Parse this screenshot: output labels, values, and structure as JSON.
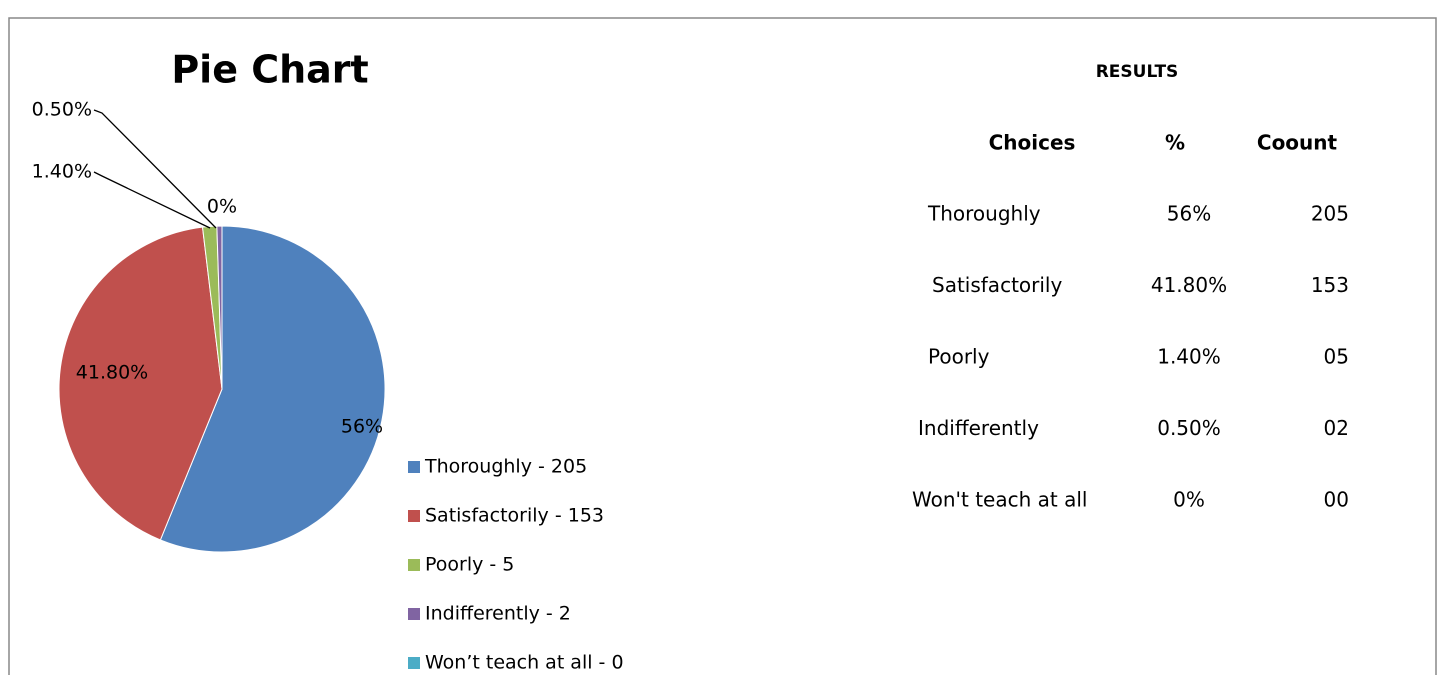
{
  "chart_data": {
    "type": "pie",
    "title": "Pie Chart",
    "categories": [
      "Thoroughly - 205",
      "Satisfactorily - 153",
      "Poorly - 5",
      "Indifferently - 2",
      "Won’t teach at all - 0"
    ],
    "values": [
      56,
      41.8,
      1.4,
      0.5,
      0
    ],
    "value_labels": [
      "56%",
      "41.80%",
      "1.40%",
      "0.50%",
      "0%"
    ],
    "colors": [
      "#4f81bd",
      "#c0504d",
      "#9bbb59",
      "#8064a2",
      "#4bacc6"
    ]
  },
  "table": {
    "title": "RESULTS",
    "header": [
      "Choices",
      "%",
      "Coount"
    ],
    "rows": [
      [
        "Thoroughly",
        "56%",
        "205"
      ],
      [
        "Satisfactorily",
        "41.80%",
        "153"
      ],
      [
        "Poorly",
        "1.40%",
        "05"
      ],
      [
        "Indifferently",
        "0.50%",
        "02"
      ],
      [
        "Won't teach at all",
        "0%",
        "00"
      ]
    ]
  }
}
